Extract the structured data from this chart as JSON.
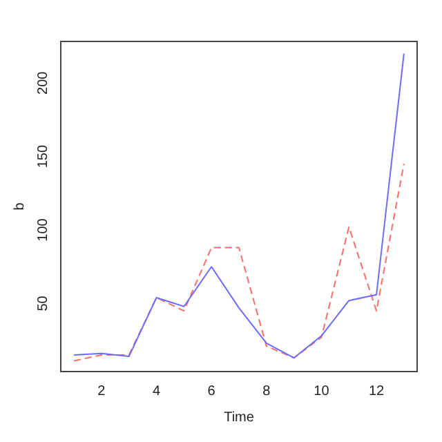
{
  "chart_data": {
    "type": "line",
    "xlabel": "Time",
    "ylabel": "b",
    "x": [
      1,
      2,
      3,
      4,
      5,
      6,
      7,
      8,
      9,
      10,
      11,
      12,
      13
    ],
    "series": [
      {
        "color": "#6b6bff",
        "line_style": "solid",
        "values": [
          15,
          16,
          14,
          54,
          48,
          75,
          47,
          23,
          13,
          28,
          52,
          56,
          220
        ]
      },
      {
        "color": "#ff6b6b",
        "line_style": "dashed",
        "values": [
          11,
          15,
          15,
          54,
          45,
          88,
          88,
          21,
          13,
          27,
          102,
          45,
          145
        ]
      }
    ],
    "xlim": [
      0.52,
      13.48
    ],
    "ylim": [
      3.7,
      228.3
    ],
    "xticks": [
      2,
      4,
      6,
      8,
      10,
      12
    ],
    "yticks": [
      50,
      100,
      150,
      200
    ],
    "grid": false,
    "legend": false,
    "marker": "none"
  }
}
